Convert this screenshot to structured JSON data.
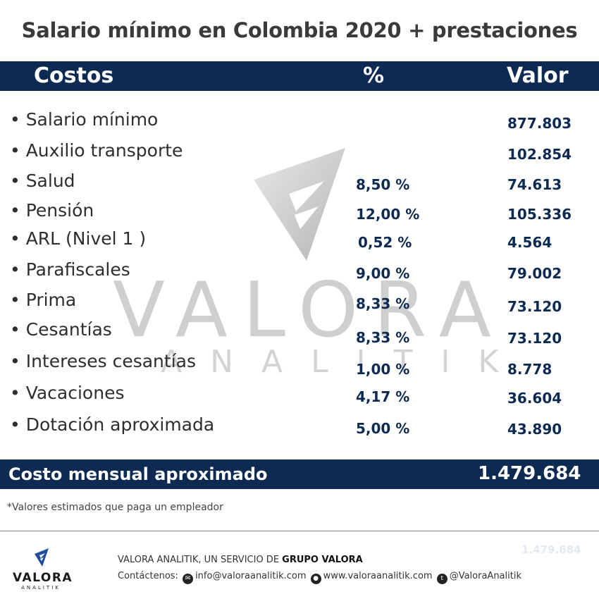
{
  "title": "Salario mínimo  en Colombia 2020 + prestaciones",
  "table": {
    "headers": {
      "costos": "Costos",
      "pct": "%",
      "valor": "Valor"
    },
    "rows": [
      {
        "label": "• Salario mínimo",
        "pct": "",
        "value": "877.803"
      },
      {
        "label": "• Auxilio transporte",
        "pct": "",
        "value": "102.854"
      },
      {
        "label": "• Salud",
        "pct": "8,50 %",
        "value": "74.613"
      },
      {
        "label": "• Pensión",
        "pct": "12,00 %",
        "value": "105.336"
      },
      {
        "label": "• ARL (Nivel 1 )",
        "pct": "0,52 %",
        "value": "4.564"
      },
      {
        "label": "• Parafiscales",
        "pct": "9,00 %",
        "value": "79.002"
      },
      {
        "label": "• Prima",
        "pct": "8,33 %",
        "value": "73.120"
      },
      {
        "label": "• Cesantías",
        "pct": "8,33 %",
        "value": "73.120"
      },
      {
        "label": "• Intereses cesantías",
        "pct": "1,00 %",
        "value": "8.778"
      },
      {
        "label": "• Vacaciones",
        "pct": "4,17 %",
        "value": "36.604"
      },
      {
        "label": "• Dotación aproximada",
        "pct": "5,00 %",
        "value": "43.890"
      }
    ],
    "total": {
      "label": "Costo mensual aproximado",
      "value": "1.479.684"
    }
  },
  "footnote": "*Valores estimados que paga un empleador",
  "watermark": {
    "word1": "VALORA",
    "word2": "ANALITIK"
  },
  "footer": {
    "logo_brand": "VALORA",
    "logo_sub": "ANALITIK",
    "service_text": "VALORA ANALITIK, UN SERVICIO DE ",
    "service_brand": "GRUPO VALORA",
    "contact_label": "Contáctenos:",
    "email": "info@valoraanalitik.com",
    "website": "www.valoraanalitik.com",
    "twitter": "@ValoraAnalitik",
    "ghost_value": "1.479.684"
  },
  "colors": {
    "navy": "#0d2b52",
    "logo_blue": "#1f4e9c",
    "watermark_gray": "#a8a8a8"
  }
}
